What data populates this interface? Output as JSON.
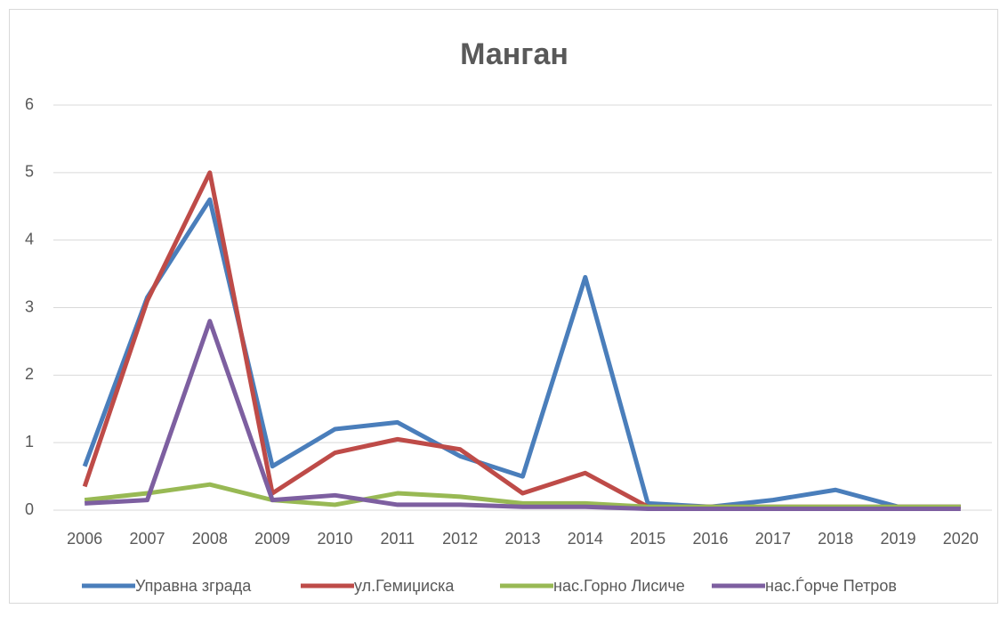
{
  "chart_data": {
    "type": "line",
    "title": "Манган",
    "categories": [
      "2006",
      "2007",
      "2008",
      "2009",
      "2010",
      "2011",
      "2012",
      "2013",
      "2014",
      "2015",
      "2016",
      "2017",
      "2018",
      "2019",
      "2020"
    ],
    "series": [
      {
        "name": "Управна зграда",
        "color": "#4a7ebb",
        "values": [
          0.65,
          3.15,
          4.6,
          0.65,
          1.2,
          1.3,
          0.8,
          0.5,
          3.45,
          0.1,
          0.05,
          0.15,
          0.3,
          0.05,
          0.05
        ]
      },
      {
        "name": "ул.Гемиџиска",
        "color": "#be4b48",
        "values": [
          0.35,
          3.1,
          5.0,
          0.25,
          0.85,
          1.05,
          0.9,
          0.25,
          0.55,
          0.05,
          0.05,
          0.05,
          0.05,
          0.05,
          0.05
        ]
      },
      {
        "name": "нас.Горно Лисиче",
        "color": "#98b954",
        "values": [
          0.15,
          0.25,
          0.38,
          0.15,
          0.08,
          0.25,
          0.2,
          0.1,
          0.1,
          0.05,
          0.05,
          0.05,
          0.05,
          0.05,
          0.05
        ]
      },
      {
        "name": "нас.Ѓорче Петров",
        "color": "#7d5fa0",
        "values": [
          0.1,
          0.15,
          2.8,
          0.15,
          0.22,
          0.08,
          0.08,
          0.05,
          0.05,
          0.02,
          0.02,
          0.02,
          0.02,
          0.02,
          0.02
        ]
      }
    ],
    "ylim": [
      0,
      6
    ],
    "yticks": [
      0,
      1,
      2,
      3,
      4,
      5,
      6
    ],
    "grid": true,
    "legend": "bottom"
  }
}
